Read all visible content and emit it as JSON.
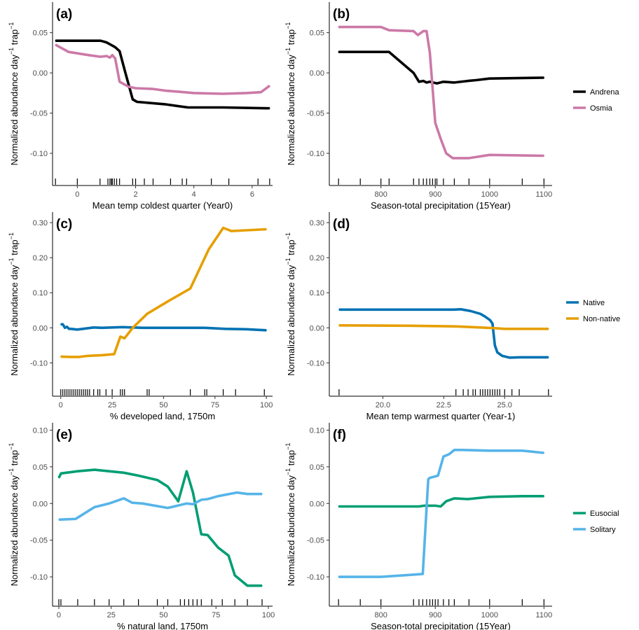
{
  "figure": {
    "ylabel_main": "Normalized abundance day",
    "ylabel_sup1": "−1",
    "ylabel_mid": " trap",
    "ylabel_sup2": "−1"
  },
  "legends": [
    {
      "entries": [
        {
          "label": "Andrena",
          "color": "#000000"
        },
        {
          "label": "Osmia",
          "color": "#CC79A7"
        }
      ]
    },
    {
      "entries": [
        {
          "label": "Native",
          "color": "#0072B2"
        },
        {
          "label": "Non-native",
          "color": "#E69F00"
        }
      ]
    },
    {
      "entries": [
        {
          "label": "Eusocial",
          "color": "#009E73"
        },
        {
          "label": "Solitary",
          "color": "#56B4E9"
        }
      ]
    }
  ],
  "chart_data": [
    {
      "tag": "(a)",
      "type": "line",
      "xlabel": "Mean temp coldest quarter (Year0)",
      "ylabel": "Normalized abundance day−1 trap−1",
      "xlim": [
        -0.85,
        6.7
      ],
      "ylim": [
        -0.14,
        0.088
      ],
      "xticks": [
        0,
        2,
        4,
        6
      ],
      "xtick_labels": [
        "0",
        "2",
        "4",
        "6"
      ],
      "yticks": [
        -0.1,
        -0.05,
        0.0,
        0.05
      ],
      "ytick_labels": [
        "-0.10",
        "-0.05",
        "0.00",
        "0.05"
      ],
      "series": [
        {
          "name": "Andrena",
          "color": "#000000",
          "x": [
            -0.75,
            0,
            0.8,
            1.0,
            1.15,
            1.3,
            1.45,
            1.65,
            1.9,
            2.05,
            3.0,
            3.8,
            5.0,
            6.6
          ],
          "y": [
            0.04,
            0.04,
            0.04,
            0.038,
            0.035,
            0.032,
            0.027,
            0.0,
            -0.033,
            -0.036,
            -0.039,
            -0.043,
            -0.043,
            -0.044
          ]
        },
        {
          "name": "Osmia",
          "color": "#CC79A7",
          "x": [
            -0.75,
            -0.3,
            0.4,
            0.8,
            1.0,
            1.12,
            1.2,
            1.3,
            1.45,
            1.75,
            2.0,
            2.6,
            3.0,
            4.0,
            5.0,
            5.8,
            6.3,
            6.6
          ],
          "y": [
            0.035,
            0.026,
            0.022,
            0.02,
            0.021,
            0.019,
            0.022,
            0.018,
            -0.011,
            -0.017,
            -0.019,
            -0.02,
            -0.022,
            -0.025,
            -0.026,
            -0.025,
            -0.024,
            -0.016
          ]
        }
      ],
      "rug": [
        -0.75,
        0,
        0.78,
        1.05,
        1.12,
        1.17,
        1.2,
        1.27,
        1.35,
        1.45,
        1.9,
        2.0,
        2.3,
        2.6,
        3.2,
        3.6,
        3.75,
        4.6,
        5.2,
        6.2,
        6.6
      ]
    },
    {
      "tag": "(b)",
      "type": "line",
      "xlabel": "Season-total precipitation (15Year)",
      "ylabel": "Normalized abundance day−1 trap−1",
      "xlim": [
        705,
        1115
      ],
      "ylim": [
        -0.14,
        0.088
      ],
      "xticks": [
        800,
        900,
        1000,
        1100
      ],
      "xtick_labels": [
        "800",
        "900",
        "1000",
        "1100"
      ],
      "yticks": [
        -0.1,
        -0.05,
        0.0,
        0.05
      ],
      "ytick_labels": [
        "-0.10",
        "-0.05",
        "0.00",
        "0.05"
      ],
      "series": [
        {
          "name": "Andrena",
          "color": "#000000",
          "x": [
            722,
            815,
            860,
            870,
            878,
            884,
            890,
            896,
            903,
            915,
            935,
            960,
            975,
            1000,
            1100
          ],
          "y": [
            0.026,
            0.026,
            0.0,
            -0.011,
            -0.01,
            -0.012,
            -0.011,
            -0.012,
            -0.013,
            -0.011,
            -0.012,
            -0.01,
            -0.009,
            -0.007,
            -0.006
          ]
        },
        {
          "name": "Osmia",
          "color": "#CC79A7",
          "x": [
            722,
            800,
            815,
            860,
            868,
            878,
            884,
            890,
            900,
            910,
            920,
            932,
            962,
            1000,
            1100
          ],
          "y": [
            0.057,
            0.057,
            0.053,
            0.052,
            0.047,
            0.052,
            0.052,
            0.025,
            -0.062,
            -0.082,
            -0.1,
            -0.106,
            -0.106,
            -0.102,
            -0.103
          ]
        }
      ],
      "rug": [
        722,
        762,
        800,
        815,
        860,
        870,
        878,
        884,
        890,
        895,
        900,
        903,
        915,
        935,
        962,
        1000,
        1060,
        1100
      ]
    },
    {
      "tag": "(c)",
      "type": "line",
      "xlabel": "% developed land, 1750m",
      "ylabel": "Normalized abundance day−1 trap−1",
      "xlim": [
        -4,
        103
      ],
      "ylim": [
        -0.195,
        0.33
      ],
      "xticks": [
        0,
        25,
        50,
        75,
        100
      ],
      "xtick_labels": [
        "0",
        "25",
        "50",
        "75",
        "100"
      ],
      "yticks": [
        -0.1,
        0.0,
        0.1,
        0.2,
        0.3
      ],
      "ytick_labels": [
        "-0.10",
        "0.00",
        "0.10",
        "0.20",
        "0.30"
      ],
      "series": [
        {
          "name": "Native",
          "color": "#0072B2",
          "x": [
            0,
            1,
            2,
            3,
            4,
            5,
            8,
            12,
            16,
            20,
            30,
            40,
            60,
            70,
            80,
            90,
            100
          ],
          "y": [
            0.01,
            0.01,
            0.0,
            0.003,
            -0.003,
            -0.003,
            -0.005,
            -0.002,
            0.001,
            0.0,
            0.002,
            0.0,
            0.0,
            0.0,
            -0.003,
            -0.004,
            -0.007
          ]
        },
        {
          "name": "Non-native",
          "color": "#E69F00",
          "x": [
            0,
            5,
            9,
            13,
            20,
            26,
            29,
            31,
            33,
            35,
            42,
            52,
            63,
            72,
            79,
            83,
            90,
            100
          ],
          "y": [
            -0.082,
            -0.083,
            -0.083,
            -0.08,
            -0.078,
            -0.075,
            -0.025,
            -0.03,
            -0.015,
            0.0,
            0.04,
            0.075,
            0.112,
            0.224,
            0.285,
            0.276,
            0.278,
            0.281
          ]
        }
      ],
      "rug": [
        0,
        1,
        2,
        3,
        4,
        5,
        6,
        7,
        8,
        9,
        10,
        11,
        12,
        13,
        14,
        16,
        18,
        19,
        22,
        25,
        29,
        30,
        31,
        42,
        43,
        63,
        70,
        71,
        79,
        85,
        99
      ]
    },
    {
      "tag": "(d)",
      "type": "line",
      "xlabel": "Mean temp warmest quarter (Year-1)",
      "ylabel": "Normalized abundance day−1 trap−1",
      "xlim": [
        17.8,
        26.95
      ],
      "ylim": [
        -0.195,
        0.33
      ],
      "xticks": [
        20.0,
        22.5,
        25.0
      ],
      "xtick_labels": [
        "20.0",
        "22.5",
        "25.0"
      ],
      "yticks": [
        -0.1,
        0.0,
        0.1,
        0.2,
        0.3
      ],
      "ytick_labels": [
        "-0.10",
        "0.00",
        "0.10",
        "0.20",
        "0.30"
      ],
      "series": [
        {
          "name": "Native",
          "color": "#0072B2",
          "x": [
            18.2,
            22.9,
            23.2,
            23.6,
            24.0,
            24.2,
            24.4,
            24.5,
            24.6,
            24.7,
            24.9,
            25.2,
            25.6,
            26.0,
            26.8
          ],
          "y": [
            0.052,
            0.052,
            0.053,
            0.048,
            0.04,
            0.032,
            0.022,
            0.012,
            -0.05,
            -0.07,
            -0.08,
            -0.085,
            -0.084,
            -0.084,
            -0.084
          ]
        },
        {
          "name": "Non-native",
          "color": "#E69F00",
          "x": [
            18.2,
            21.0,
            23.0,
            24.0,
            24.6,
            25.0,
            26.8
          ],
          "y": [
            0.007,
            0.006,
            0.004,
            0.001,
            -0.001,
            -0.003,
            -0.003
          ]
        }
      ],
      "rug": [
        18.2,
        23.0,
        23.3,
        23.5,
        23.7,
        23.8,
        24.0,
        24.1,
        24.2,
        24.3,
        24.4,
        24.5,
        24.6,
        24.7,
        24.8,
        25.0,
        25.3,
        25.6,
        26.8
      ]
    },
    {
      "tag": "(e)",
      "type": "line",
      "xlabel": "% natural land, 1750m",
      "ylabel": "Normalized abundance day−1 trap−1",
      "xlim": [
        -3,
        102
      ],
      "ylim": [
        -0.14,
        0.11
      ],
      "xticks": [
        0,
        25,
        50,
        75,
        100
      ],
      "xtick_labels": [
        "0",
        "25",
        "50",
        "75",
        "100"
      ],
      "yticks": [
        -0.1,
        -0.05,
        0.0,
        0.05,
        0.1
      ],
      "ytick_labels": [
        "-0.10",
        "-0.05",
        "0.00",
        "0.05",
        "0.10"
      ],
      "series": [
        {
          "name": "Eusocial",
          "color": "#009E73",
          "x": [
            0,
            1,
            9,
            17,
            31,
            38,
            47,
            52,
            57,
            61,
            64,
            68,
            71,
            76,
            81,
            84,
            90,
            97
          ],
          "y": [
            0.035,
            0.041,
            0.044,
            0.046,
            0.042,
            0.038,
            0.032,
            0.023,
            0.003,
            0.044,
            0.015,
            -0.042,
            -0.043,
            -0.06,
            -0.071,
            -0.098,
            -0.112,
            -0.112
          ]
        },
        {
          "name": "Solitary",
          "color": "#56B4E9",
          "x": [
            0,
            8,
            17,
            24,
            31,
            35,
            40,
            52,
            61,
            64,
            68,
            71,
            76,
            85,
            90,
            97
          ],
          "y": [
            -0.022,
            -0.021,
            -0.005,
            0.0,
            0.007,
            0.001,
            0.0,
            -0.006,
            0.0,
            -0.001,
            0.005,
            0.006,
            0.01,
            0.015,
            0.013,
            0.013
          ]
        }
      ],
      "rug": [
        0,
        1,
        9,
        17,
        24,
        31,
        38,
        47,
        52,
        58,
        60,
        62,
        64,
        66,
        68,
        73,
        78,
        84,
        90,
        97
      ]
    },
    {
      "tag": "(f)",
      "type": "line",
      "xlabel": "Season-total precipitation (15Year)",
      "ylabel": "Normalized abundance day−1 trap−1",
      "xlim": [
        705,
        1115
      ],
      "ylim": [
        -0.14,
        0.11
      ],
      "xticks": [
        800,
        900,
        1000,
        1100
      ],
      "xtick_labels": [
        "800",
        "900",
        "1000",
        "1100"
      ],
      "yticks": [
        -0.1,
        -0.05,
        0.0,
        0.05,
        0.1
      ],
      "ytick_labels": [
        "-0.10",
        "-0.05",
        "0.00",
        "0.05",
        "0.10"
      ],
      "series": [
        {
          "name": "Eusocial",
          "color": "#009E73",
          "x": [
            722,
            800,
            870,
            880,
            890,
            900,
            910,
            920,
            935,
            960,
            1000,
            1060,
            1100
          ],
          "y": [
            -0.004,
            -0.004,
            -0.004,
            -0.003,
            -0.003,
            -0.003,
            -0.004,
            0.003,
            0.007,
            0.006,
            0.009,
            0.01,
            0.01
          ]
        },
        {
          "name": "Solitary",
          "color": "#56B4E9",
          "x": [
            722,
            800,
            860,
            877,
            887,
            890,
            905,
            915,
            925,
            935,
            950,
            1000,
            1060,
            1100
          ],
          "y": [
            -0.1,
            -0.1,
            -0.097,
            -0.096,
            0.033,
            0.035,
            0.038,
            0.064,
            0.067,
            0.073,
            0.073,
            0.072,
            0.072,
            0.069
          ]
        }
      ],
      "rug": [
        722,
        762,
        800,
        860,
        870,
        877,
        884,
        890,
        895,
        900,
        905,
        915,
        925,
        935,
        962,
        1000,
        1060,
        1100
      ]
    }
  ]
}
